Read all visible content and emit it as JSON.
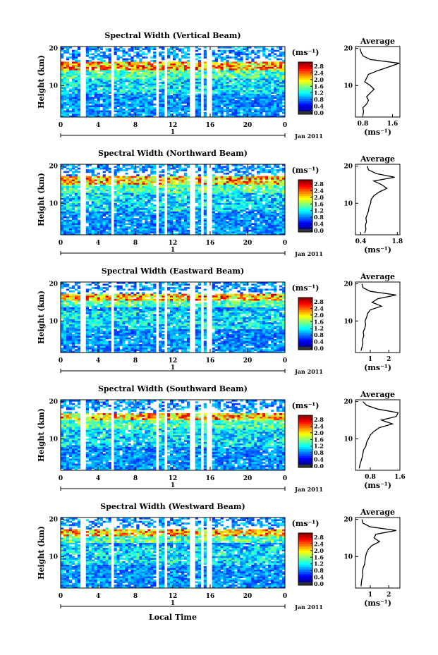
{
  "figure": {
    "common_xlabel": "Local Time",
    "common_ylabel": "Height (km)",
    "date_label": "Jan 2011",
    "day_label": "1",
    "colorbar_unit": "(ms⁻¹)",
    "colorbar_ticks": [
      "0.0",
      "0.4",
      "0.8",
      "1.2",
      "1.6",
      "2.0",
      "2.4",
      "2.8"
    ],
    "avg_title": "Average",
    "avg_unit": "(ms⁻¹)",
    "x_ticks": [
      "0",
      "4",
      "8",
      "12",
      "16",
      "20",
      "0"
    ],
    "y_ticks": [
      "10",
      "20"
    ]
  },
  "chart_data": [
    {
      "type": "heatmap",
      "title": "Spectral Width (Vertical Beam)",
      "x_range": [
        0,
        24
      ],
      "y_range": [
        1.5,
        20.5
      ],
      "value_range": [
        0,
        3.0
      ],
      "missing_time_bands": [
        [
          2.0,
          2.6
        ],
        [
          5.4,
          5.8
        ],
        [
          10.2,
          10.5
        ],
        [
          11.0,
          11.4
        ],
        [
          13.9,
          14.4
        ],
        [
          14.9,
          15.2
        ],
        [
          15.6,
          16.2
        ],
        [
          17.3,
          17.5
        ]
      ],
      "high_width_layer_km": [
        14.0,
        16.5
      ],
      "average_profile": {
        "xlim": [
          0.6,
          1.8
        ],
        "x_ticks": [
          "0.8",
          "1.6"
        ],
        "height_km": [
          2,
          3,
          4,
          5,
          6,
          7,
          8,
          9,
          10,
          11,
          12,
          13,
          14,
          15,
          16,
          17,
          18,
          19,
          20
        ],
        "width_ms": [
          0.8,
          0.82,
          0.8,
          0.9,
          0.95,
          0.9,
          1.0,
          1.1,
          1.0,
          0.85,
          0.9,
          0.95,
          1.2,
          1.5,
          1.78,
          1.0,
          0.8,
          0.75,
          0.72
        ]
      }
    },
    {
      "type": "heatmap",
      "title": "Spectral Width (Northward Beam)",
      "x_range": [
        0,
        24
      ],
      "y_range": [
        1.5,
        20.5
      ],
      "value_range": [
        0,
        3.0
      ],
      "missing_time_bands": [
        [
          2.0,
          2.6
        ],
        [
          5.4,
          5.8
        ],
        [
          10.2,
          10.5
        ],
        [
          11.0,
          11.4
        ],
        [
          13.9,
          14.4
        ],
        [
          14.9,
          15.2
        ],
        [
          15.6,
          16.2
        ],
        [
          17.3,
          17.5
        ]
      ],
      "high_width_layer_km": [
        15.0,
        17.5
      ],
      "average_profile": {
        "xlim": [
          0.2,
          1.9
        ],
        "x_ticks": [
          "0.4",
          "1.8"
        ],
        "height_km": [
          2,
          3,
          4,
          5,
          6,
          7,
          8,
          9,
          10,
          11,
          12,
          13,
          14,
          15,
          16,
          17,
          18,
          19,
          20
        ],
        "width_ms": [
          0.55,
          0.6,
          0.58,
          0.62,
          0.6,
          0.65,
          0.7,
          0.72,
          0.78,
          0.8,
          0.9,
          1.1,
          1.4,
          1.2,
          0.9,
          1.7,
          1.0,
          0.7,
          0.65
        ]
      }
    },
    {
      "type": "heatmap",
      "title": "Spectral Width (Eastward Beam)",
      "x_range": [
        0,
        24
      ],
      "y_range": [
        1.5,
        20.5
      ],
      "value_range": [
        0,
        3.0
      ],
      "missing_time_bands": [
        [
          2.0,
          2.6
        ],
        [
          5.4,
          5.8
        ],
        [
          10.2,
          10.5
        ],
        [
          11.0,
          11.4
        ],
        [
          13.9,
          14.4
        ],
        [
          14.9,
          15.2
        ],
        [
          15.6,
          16.2
        ],
        [
          17.3,
          17.5
        ]
      ],
      "high_width_layer_km": [
        15.5,
        17.5
      ],
      "average_profile": {
        "xlim": [
          0.2,
          2.6
        ],
        "x_ticks": [
          "1",
          "2"
        ],
        "height_km": [
          2,
          3,
          4,
          5,
          6,
          7,
          8,
          9,
          10,
          11,
          12,
          13,
          14,
          15,
          16,
          17,
          18,
          19,
          20
        ],
        "width_ms": [
          0.5,
          0.55,
          0.6,
          0.58,
          0.65,
          0.62,
          0.7,
          0.75,
          0.72,
          0.8,
          0.85,
          1.0,
          1.6,
          1.1,
          1.4,
          2.4,
          1.0,
          0.6,
          0.55
        ]
      }
    },
    {
      "type": "heatmap",
      "title": "Spectral Width (Southward Beam)",
      "x_range": [
        0,
        24
      ],
      "y_range": [
        1.5,
        20.5
      ],
      "value_range": [
        0,
        3.0
      ],
      "missing_time_bands": [
        [
          2.0,
          2.6
        ],
        [
          5.4,
          5.8
        ],
        [
          10.2,
          10.5
        ],
        [
          11.0,
          11.4
        ],
        [
          13.9,
          14.4
        ],
        [
          14.9,
          15.2
        ],
        [
          15.6,
          16.2
        ],
        [
          17.3,
          17.5
        ]
      ],
      "high_width_layer_km": [
        15.0,
        17.0
      ],
      "average_profile": {
        "xlim": [
          0.4,
          1.6
        ],
        "x_ticks": [
          "0.8",
          "1.6"
        ],
        "height_km": [
          2,
          3,
          4,
          5,
          6,
          7,
          8,
          9,
          10,
          11,
          12,
          13,
          14,
          15,
          16,
          17,
          18,
          19,
          20
        ],
        "width_ms": [
          0.5,
          0.52,
          0.55,
          0.58,
          0.6,
          0.62,
          0.68,
          0.7,
          0.75,
          0.8,
          0.9,
          1.05,
          1.4,
          1.1,
          1.5,
          1.55,
          1.0,
          0.7,
          0.6
        ]
      }
    },
    {
      "type": "heatmap",
      "title": "Spectral Width (Westward Beam)",
      "x_range": [
        0,
        24
      ],
      "y_range": [
        1.5,
        20.5
      ],
      "value_range": [
        0,
        3.0
      ],
      "missing_time_bands": [
        [
          2.0,
          2.6
        ],
        [
          5.4,
          5.8
        ],
        [
          10.2,
          10.5
        ],
        [
          11.0,
          11.4
        ],
        [
          13.9,
          14.4
        ],
        [
          14.9,
          15.2
        ],
        [
          15.6,
          16.2
        ],
        [
          17.3,
          17.5
        ]
      ],
      "high_width_layer_km": [
        15.5,
        17.5
      ],
      "average_profile": {
        "xlim": [
          0.2,
          2.6
        ],
        "x_ticks": [
          "1",
          "2"
        ],
        "height_km": [
          2,
          3,
          4,
          5,
          6,
          7,
          8,
          9,
          10,
          11,
          12,
          13,
          14,
          15,
          16,
          17,
          18,
          19,
          20
        ],
        "width_ms": [
          0.5,
          0.52,
          0.55,
          0.6,
          0.58,
          0.62,
          0.7,
          0.72,
          0.75,
          0.8,
          0.9,
          1.1,
          1.5,
          1.2,
          1.3,
          2.4,
          1.0,
          0.6,
          0.55
        ]
      }
    }
  ]
}
